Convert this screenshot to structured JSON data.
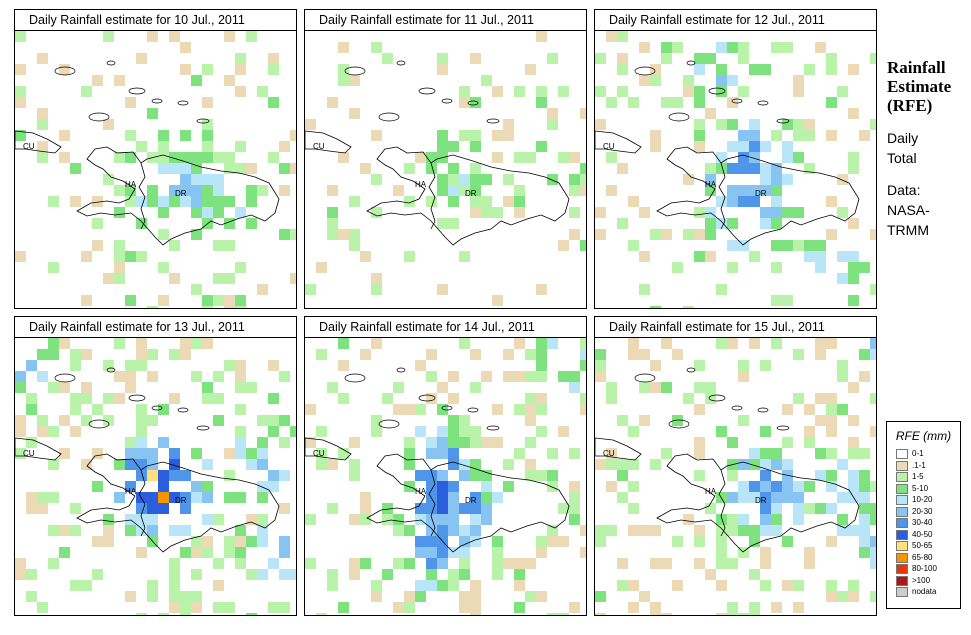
{
  "panels": [
    {
      "title": "Daily Rainfall estimate for  10 Jul., 2011",
      "seed": 10,
      "density": 0.3,
      "intensity": 0.6,
      "labels": [
        "CU",
        "HA",
        "DR"
      ]
    },
    {
      "title": "Daily Rainfall estimate for  11 Jul., 2011",
      "seed": 11,
      "density": 0.16,
      "intensity": 0.3,
      "labels": [
        "CU",
        "HA",
        "DR"
      ]
    },
    {
      "title": "Daily Rainfall estimate for  12 Jul., 2011",
      "seed": 12,
      "density": 0.34,
      "intensity": 1.0,
      "labels": [
        "CU",
        "HA",
        "DR"
      ]
    },
    {
      "title": "Daily Rainfall estimate for  13 Jul., 2011",
      "seed": 13,
      "density": 0.46,
      "intensity": 1.6,
      "labels": [
        "CU",
        "HA",
        "DR"
      ]
    },
    {
      "title": "Daily Rainfall estimate for  14 Jul., 2011",
      "seed": 14,
      "density": 0.42,
      "intensity": 1.2,
      "labels": [
        "CU",
        "HA",
        "DR"
      ]
    },
    {
      "title": "Daily Rainfall estimate for  15 Jul., 2011",
      "seed": 15,
      "density": 0.4,
      "intensity": 1.0,
      "labels": [
        "CU",
        "HA",
        "DR"
      ]
    }
  ],
  "sidebar": {
    "title_lines": [
      "Rainfall",
      "Estimate",
      "(RFE)"
    ],
    "daily_lines": [
      "Daily",
      "Total"
    ],
    "data_lines": [
      "Data:",
      "NASA-",
      "TRMM"
    ]
  },
  "legend": {
    "title": "RFE (mm)",
    "items": [
      {
        "label": "0-1",
        "color": "#ffffff"
      },
      {
        "label": ".1-1",
        "color": "#ecd9b6"
      },
      {
        "label": "1-5",
        "color": "#b9f2a9"
      },
      {
        "label": "5-10",
        "color": "#7ee37e"
      },
      {
        "label": "10-20",
        "color": "#b8e6f8"
      },
      {
        "label": "20-30",
        "color": "#88c4f2"
      },
      {
        "label": "30-40",
        "color": "#4f96ea"
      },
      {
        "label": "40-50",
        "color": "#2a5ede"
      },
      {
        "label": "50-65",
        "color": "#ffe07a"
      },
      {
        "label": "65-80",
        "color": "#f59600"
      },
      {
        "label": "80-100",
        "color": "#e6360b"
      },
      {
        "label": ">100",
        "color": "#a81818"
      },
      {
        "label": "nodata",
        "color": "#cccccc"
      }
    ]
  }
}
